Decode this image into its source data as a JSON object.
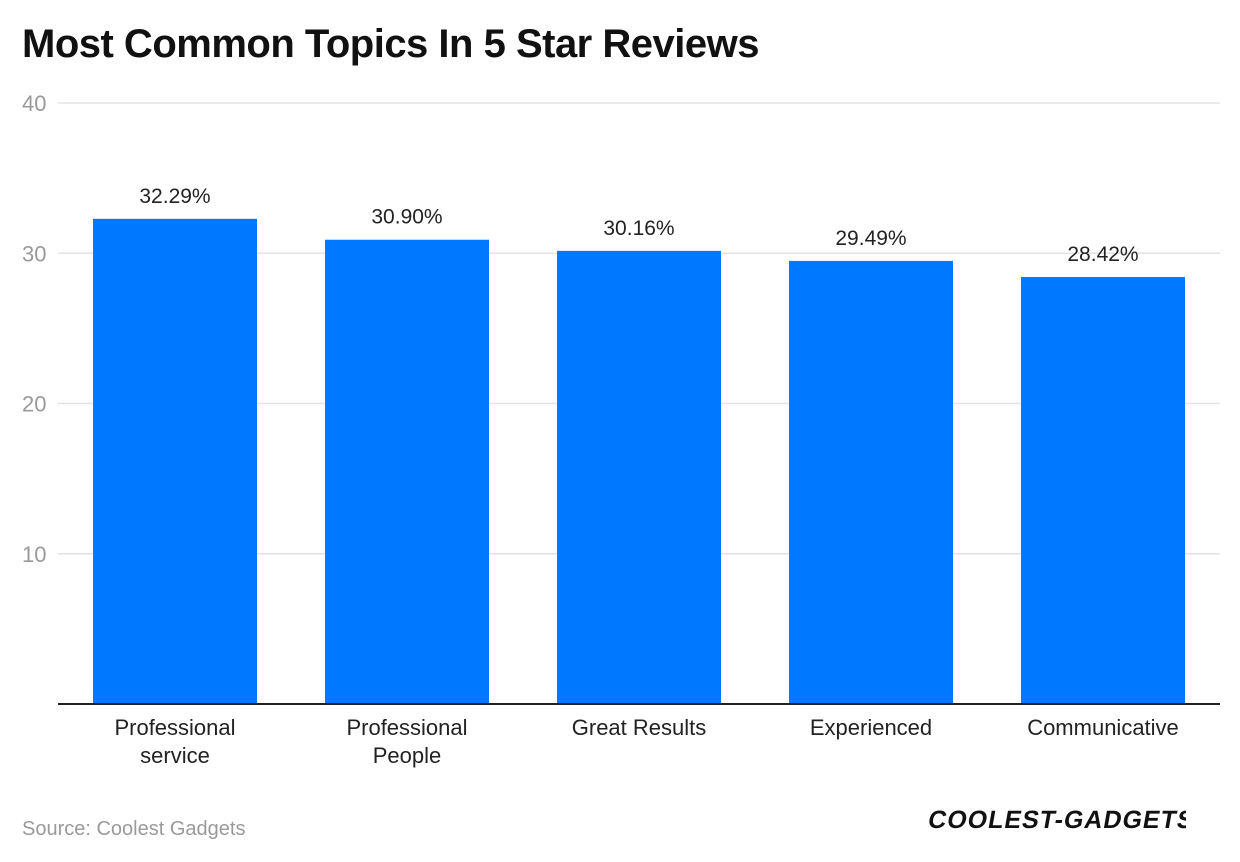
{
  "title": "Most Common Topics In 5 Star Reviews",
  "source": "Source: Coolest Gadgets",
  "brand": {
    "text": "COOLEST-GADGETS",
    "color": "#111111",
    "accent": "#e07a5f"
  },
  "colors": {
    "bar": "#0078ff",
    "grid": "#e3e3e3",
    "axis": "#222222",
    "tick_label": "#9a9a9a",
    "category_label": "#222222",
    "value_label": "#222222"
  },
  "chart_data": {
    "type": "bar",
    "title": "Most Common Topics In 5 Star Reviews",
    "categories": [
      [
        "Professional",
        "service"
      ],
      [
        "Professional",
        "People"
      ],
      [
        "Great Results"
      ],
      [
        "Experienced"
      ],
      [
        "Communicative"
      ]
    ],
    "values": [
      32.29,
      30.9,
      30.16,
      29.49,
      28.42
    ],
    "value_labels": [
      "32.29%",
      "30.90%",
      "30.16%",
      "29.49%",
      "28.42%"
    ],
    "ylim": [
      0,
      40
    ],
    "yticks": [
      10,
      20,
      30,
      40
    ],
    "ytick_labels": [
      "10",
      "20",
      "30",
      "40"
    ],
    "xlabel": "",
    "ylabel": "",
    "grid": true,
    "legend": "none"
  }
}
